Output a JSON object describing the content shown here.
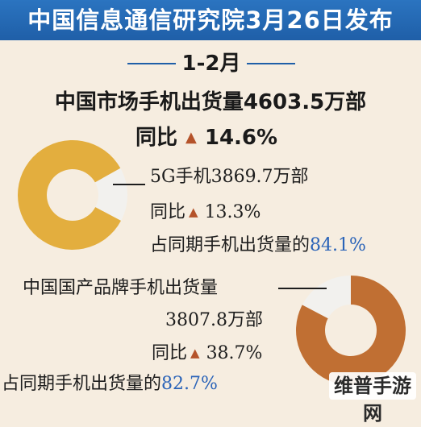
{
  "banner": {
    "title": "中国信息通信研究院3月26日发布"
  },
  "period": {
    "label": "1-2月"
  },
  "headline": {
    "text": "中国市场手机出货量4603.5万部",
    "yoy_label": "同比",
    "yoy_value": "14.6%"
  },
  "fiveg": {
    "title": "5G手机3869.7万部",
    "yoy_label": "同比",
    "yoy_value": "13.3%",
    "share_prefix": "占同期手机出货量的",
    "share_value": "84.1%"
  },
  "domestic": {
    "title": "中国国产品牌手机出货量",
    "amount": "3807.8万部",
    "yoy_label": "同比",
    "yoy_value": "38.7%",
    "share_prefix": "占同期手机出货量的",
    "share_value": "82.7%"
  },
  "watermark": {
    "text": "维普手游网"
  },
  "colors": {
    "banner": "#1f5fa8",
    "fiveg_ring": "#e3ae3e",
    "domestic_ring": "#c06f33",
    "ring_rest": "#f2f1ee",
    "arrow": "#b5532a",
    "highlight_text": "#2a63b8"
  },
  "chart_data": [
    {
      "type": "pie",
      "categories": [
        "5G手机",
        ""
      ],
      "values": [
        84.1,
        15.9
      ],
      "title": ""
    },
    {
      "type": "pie",
      "categories": [
        "中国国产品牌手机",
        ""
      ],
      "values": [
        82.7,
        17.3
      ],
      "title": ""
    }
  ]
}
